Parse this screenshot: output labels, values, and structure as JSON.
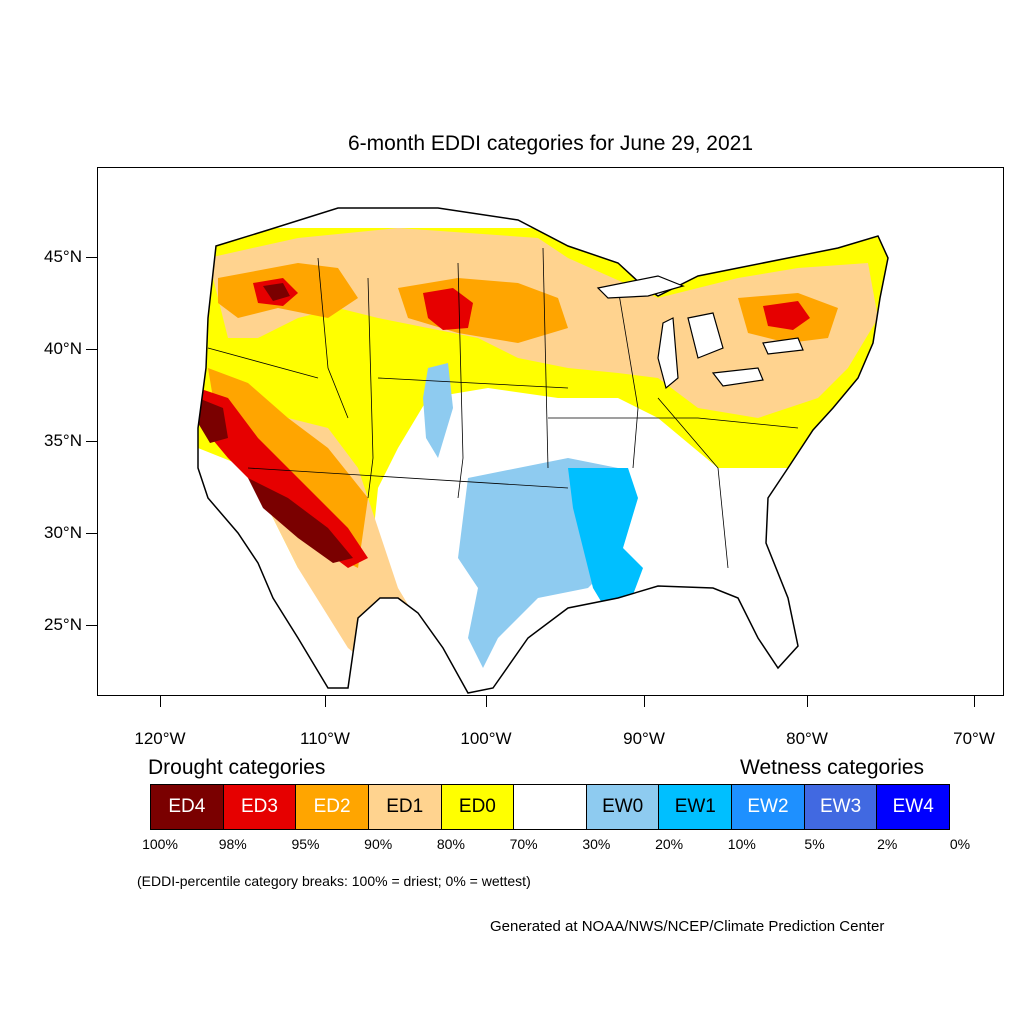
{
  "title": "6-month EDDI categories for June 29, 2021",
  "lat_labels": [
    "45°N",
    "40°N",
    "35°N",
    "30°N",
    "25°N"
  ],
  "lon_labels": [
    "120°W",
    "110°W",
    "100°W",
    "90°W",
    "80°W",
    "70°W"
  ],
  "drought_heading": "Drought categories",
  "wetness_heading": "Wetness categories",
  "legend": [
    {
      "label": "ED4",
      "color": "#7a0000",
      "text_color": "#ffffff"
    },
    {
      "label": "ED3",
      "color": "#e60000",
      "text_color": "#ffffff"
    },
    {
      "label": "ED2",
      "color": "#ffa500",
      "text_color": "#ffffff"
    },
    {
      "label": "ED1",
      "color": "#ffd38f",
      "text_color": "#000000"
    },
    {
      "label": "ED0",
      "color": "#ffff00",
      "text_color": "#000000"
    },
    {
      "label": "",
      "color": "#ffffff",
      "text_color": "#000000"
    },
    {
      "label": "EW0",
      "color": "#8ecbf0",
      "text_color": "#000000"
    },
    {
      "label": "EW1",
      "color": "#00bfff",
      "text_color": "#000000"
    },
    {
      "label": "EW2",
      "color": "#1e90ff",
      "text_color": "#ffffff"
    },
    {
      "label": "EW3",
      "color": "#4169e1",
      "text_color": "#ffffff"
    },
    {
      "label": "EW4",
      "color": "#0000ff",
      "text_color": "#ffffff"
    }
  ],
  "percent_breaks": [
    "100%",
    "98%",
    "95%",
    "90%",
    "80%",
    "70%",
    "30%",
    "20%",
    "10%",
    "5%",
    "2%",
    "0%"
  ],
  "note": "(EDDI-percentile category breaks: 100% = driest; 0% = wettest)",
  "credit": "Generated at NOAA/NWS/NCEP/Climate Prediction Center"
}
